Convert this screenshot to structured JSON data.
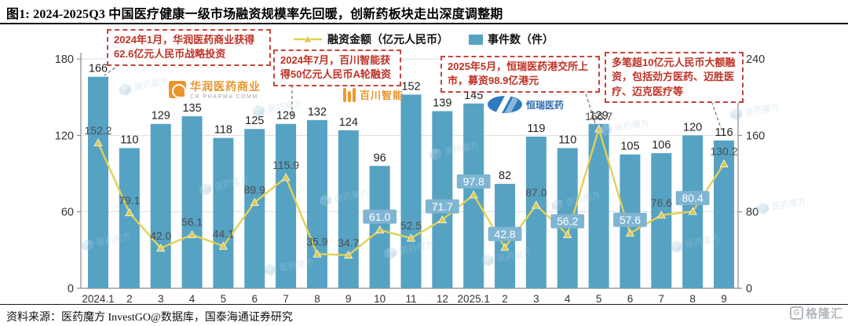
{
  "title": "图1:  2024-2025Q3 中国医疗健康一级市场融资规模率先回暖，创新药板块走出深度调整期",
  "source": "资料来源：医药魔方 InvestGO@数据库，国泰海通证券研究",
  "watermark": {
    "text": "医药魔方",
    "brand": "格隆汇",
    "brand_glyph": "G"
  },
  "legend": [
    {
      "label": "融资金额（亿元人民币）",
      "type": "line",
      "color": "#e3d052"
    },
    {
      "label": "事件数（件）",
      "type": "bar",
      "color": "#56a2c3"
    }
  ],
  "annotations": [
    {
      "text": "2024年1月，华润医药商业获得62.6亿元人民币战略投资"
    },
    {
      "text": "2024年7月，百川智能获得50亿元人民币A轮融资"
    },
    {
      "text": "2025年5月，恒瑞医药港交所上市，募资98.9亿港元"
    },
    {
      "text": "多笔超10亿元人民币大额融资，包括劲方医药、迈胜医疗、迈克医疗等"
    }
  ],
  "logos": {
    "crpharma": {
      "name": "华润医药商业",
      "sub": "CR PHARMA COMM"
    },
    "baichuan": {
      "name": "百川智能"
    },
    "hengrui": {
      "name": "恒瑞医药"
    }
  },
  "chart_data": {
    "type": "combo-bar-line",
    "categories": [
      "2024.1",
      "2",
      "3",
      "4",
      "5",
      "6",
      "7",
      "8",
      "9",
      "10",
      "11",
      "12",
      "2025.1",
      "2",
      "3",
      "4",
      "5",
      "6",
      "7",
      "8",
      "9"
    ],
    "series": [
      {
        "name": "事件数（件）",
        "type": "bar",
        "color": "#56a2c3",
        "axis_max": 180,
        "values": [
          166,
          110,
          129,
          135,
          118,
          125,
          129,
          132,
          124,
          96,
          152,
          139,
          145,
          82,
          119,
          110,
          129,
          105,
          106,
          120,
          116
        ]
      },
      {
        "name": "融资金额（亿元人民币）",
        "type": "line",
        "color": "#e3d052",
        "axis_max": 240,
        "values": [
          "152.2",
          "79.1",
          "42.0",
          "56.1",
          "44.1",
          "89.9",
          "115.9",
          "35.9",
          "34.7",
          "61.0",
          "52.5",
          "71.7",
          "97.8",
          "42.8",
          "87.0",
          "56.2",
          "166.7",
          "57.6",
          "76.6",
          "80.4",
          "130.2"
        ],
        "boxed_label_indices": [
          9,
          11,
          12,
          13,
          15,
          17,
          19
        ]
      }
    ],
    "left_axis": {
      "ticks": [
        0,
        60,
        120,
        180
      ],
      "max": 180
    },
    "right_axis": {
      "ticks": [
        0,
        80,
        160,
        240
      ],
      "max": 240
    },
    "grid": true,
    "legend_position": "top"
  }
}
